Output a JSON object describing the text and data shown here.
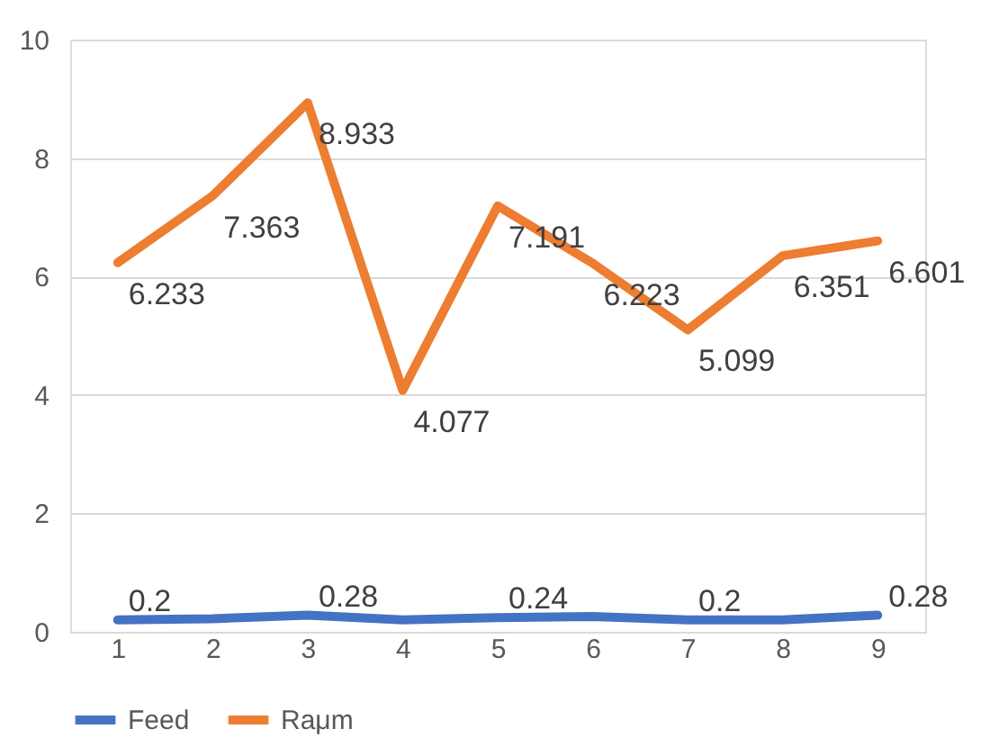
{
  "chart_data": {
    "type": "line",
    "categories": [
      "1",
      "2",
      "3",
      "4",
      "5",
      "6",
      "7",
      "8",
      "9"
    ],
    "series": [
      {
        "name": "Feed",
        "color": "#4472c4",
        "values": [
          0.2,
          0.22,
          0.28,
          0.2,
          0.24,
          0.26,
          0.2,
          0.2,
          0.28
        ],
        "value_labels": [
          "0.2",
          null,
          "0.28",
          null,
          "0.24",
          null,
          "0.2",
          null,
          "0.28"
        ]
      },
      {
        "name": "Raμm",
        "color": "#ed7d31",
        "values": [
          6.233,
          7.363,
          8.933,
          4.077,
          7.191,
          6.223,
          5.099,
          6.351,
          6.601
        ],
        "value_labels": [
          "6.233",
          "7.363",
          "8.933",
          "4.077",
          "7.191",
          "6.223",
          "5.099",
          "6.351",
          "6.601"
        ]
      }
    ],
    "ylim": [
      0,
      10
    ],
    "yticks": [
      0,
      2,
      4,
      6,
      8,
      10
    ],
    "grid": "y",
    "legend": "bottom",
    "marker": "none",
    "line_style": "solid"
  }
}
